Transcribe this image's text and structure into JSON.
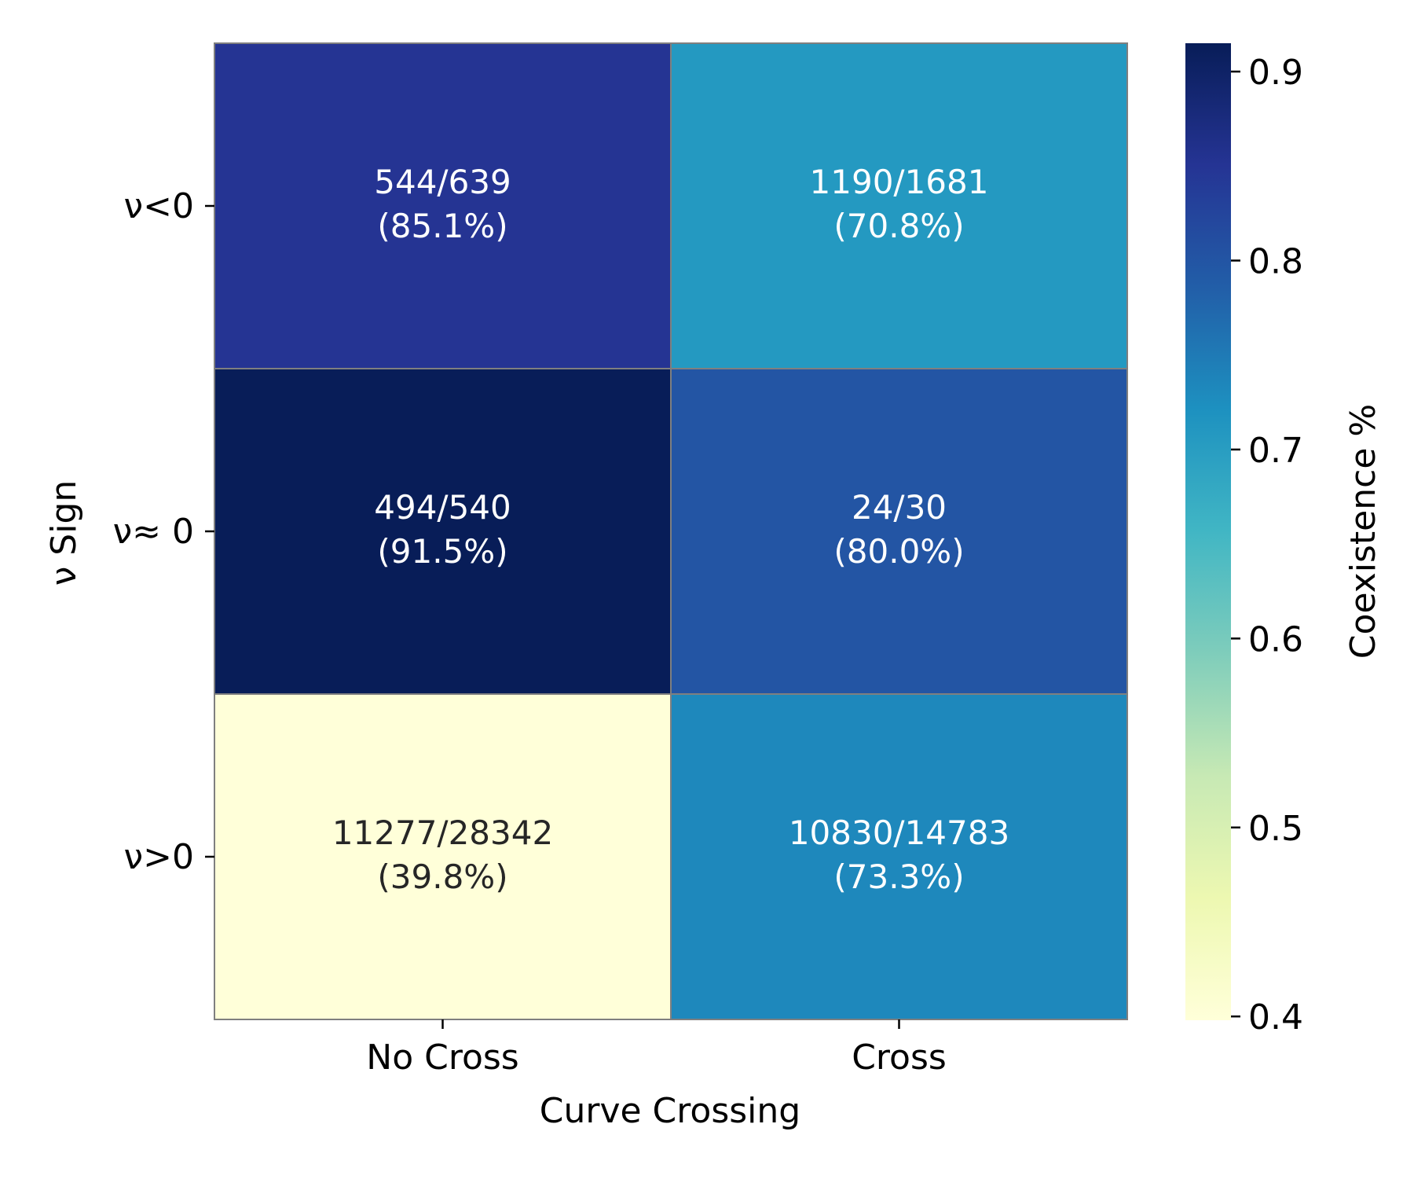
{
  "chart_data": {
    "type": "heatmap",
    "title": "",
    "xlabel": "Curve Crossing",
    "ylabel": "ν Sign",
    "x_categories": [
      "No Cross",
      "Cross"
    ],
    "y_categories": [
      "ν<0",
      "ν≈ 0",
      "ν>0"
    ],
    "cells": [
      [
        {
          "label": "544/639",
          "pct": "(85.1%)",
          "value": 0.851
        },
        {
          "label": "1190/1681",
          "pct": "(70.8%)",
          "value": 0.708
        }
      ],
      [
        {
          "label": "494/540",
          "pct": "(91.5%)",
          "value": 0.915
        },
        {
          "label": "24/30",
          "pct": "(80.0%)",
          "value": 0.8
        }
      ],
      [
        {
          "label": "11277/28342",
          "pct": "(39.8%)",
          "value": 0.398
        },
        {
          "label": "10830/14783",
          "pct": "(73.3%)",
          "value": 0.733
        }
      ]
    ],
    "colorbar": {
      "label": "Coexistence %",
      "range": [
        0.398,
        0.915
      ],
      "ticks": [
        "0.4",
        "0.5",
        "0.6",
        "0.7",
        "0.8",
        "0.9"
      ],
      "tick_values": [
        0.4,
        0.5,
        0.6,
        0.7,
        0.8,
        0.9
      ],
      "colormap": "YlGnBu"
    },
    "grid_color": "#7f7f7f"
  }
}
